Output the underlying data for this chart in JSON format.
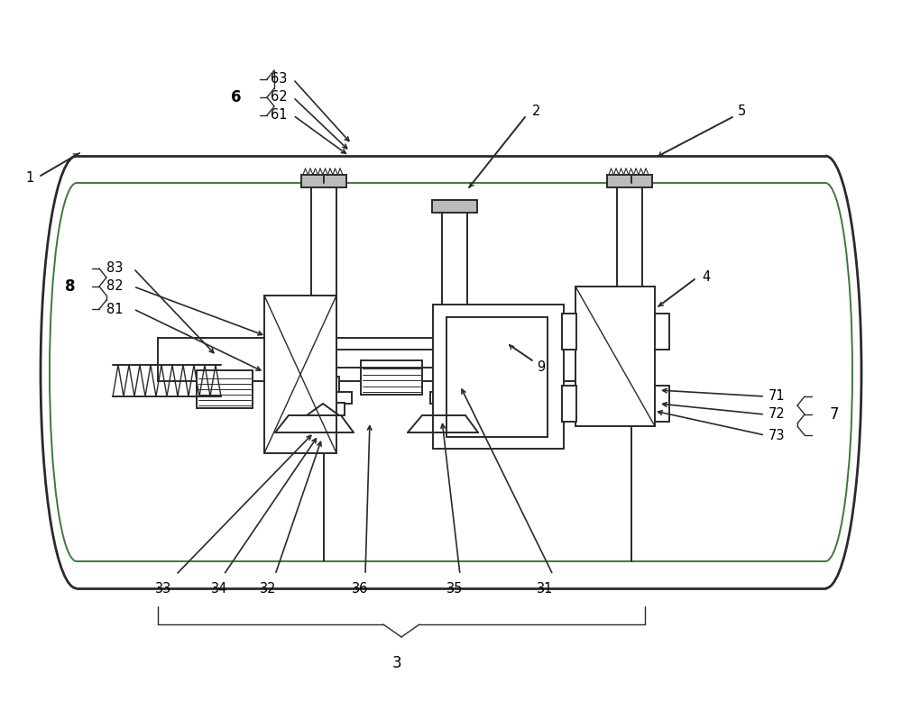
{
  "line_color": "#2a2a2a",
  "green_line": "#3a7a3a",
  "fig_width": 10.0,
  "fig_height": 8.08,
  "dpi": 100
}
